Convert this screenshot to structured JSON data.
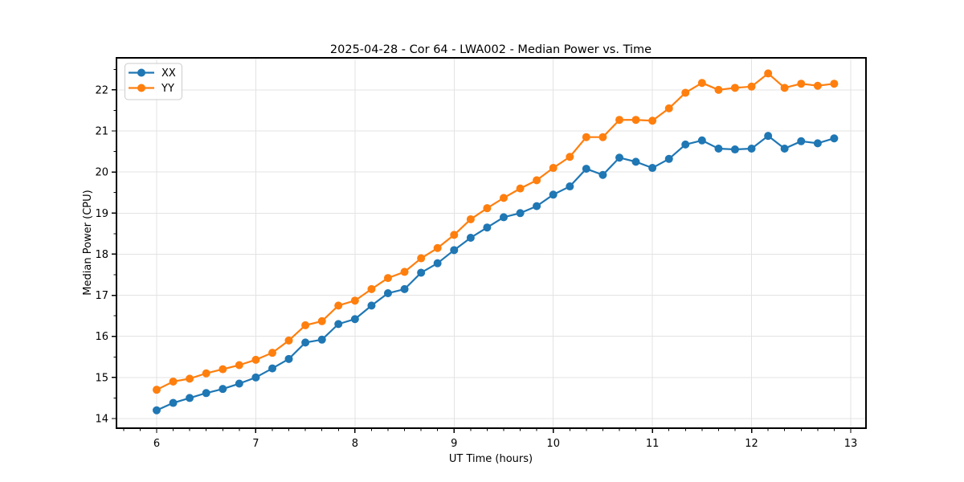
{
  "figure_title": "2025-04-28 - Cor 64 - LWA002 - Median Power vs. Time",
  "colors": {
    "series_xx": "#1f77b4",
    "series_yy": "#ff7f0e",
    "grid": "#e3e3e3",
    "spine": "#000000",
    "tick": "#000000",
    "text": "#000000",
    "legend_border": "#cccccc",
    "legend_background": "#ffffff"
  },
  "chart_data": {
    "type": "line",
    "title": "2025-04-28 - Cor 64 - LWA002 - Median Power vs. Time",
    "xlabel": "UT Time (hours)",
    "ylabel": "Median Power (CPU)",
    "xlim": [
      5.595,
      13.154
    ],
    "ylim": [
      13.765,
      22.78
    ],
    "x_major_ticks": [
      6,
      7,
      8,
      9,
      10,
      11,
      12,
      13
    ],
    "y_major_ticks": [
      14,
      15,
      16,
      17,
      18,
      19,
      20,
      21,
      22
    ],
    "x_minor_step": 0.16667,
    "y_minor_step": 0.5,
    "grid": true,
    "legend_position": "upper-left",
    "marker": "circle",
    "x": [
      6,
      6.167,
      6.333,
      6.5,
      6.667,
      6.833,
      7,
      7.167,
      7.333,
      7.5,
      7.667,
      7.833,
      8,
      8.167,
      8.333,
      8.5,
      8.667,
      8.833,
      9,
      9.167,
      9.333,
      9.5,
      9.667,
      9.833,
      10,
      10.167,
      10.333,
      10.5,
      10.667,
      10.833,
      11,
      11.167,
      11.333,
      11.5,
      11.667,
      11.833,
      12,
      12.167,
      12.333,
      12.5,
      12.667,
      12.833
    ],
    "series": [
      {
        "name": "XX",
        "color": "#1f77b4",
        "values": [
          14.2,
          14.38,
          14.5,
          14.62,
          14.72,
          14.85,
          15.0,
          15.22,
          15.45,
          15.85,
          15.92,
          16.3,
          16.42,
          16.75,
          17.05,
          17.15,
          17.55,
          17.78,
          18.1,
          18.4,
          18.65,
          18.9,
          19.0,
          19.17,
          19.45,
          19.65,
          20.08,
          19.93,
          20.35,
          20.25,
          20.1,
          20.32,
          20.67,
          20.77,
          20.57,
          20.55,
          20.57,
          20.88,
          20.57,
          20.75,
          20.7,
          20.82
        ]
      },
      {
        "name": "YY",
        "color": "#ff7f0e",
        "values": [
          14.7,
          14.9,
          14.97,
          15.1,
          15.2,
          15.3,
          15.43,
          15.6,
          15.9,
          16.27,
          16.37,
          16.75,
          16.87,
          17.15,
          17.42,
          17.57,
          17.9,
          18.15,
          18.47,
          18.85,
          19.12,
          19.37,
          19.6,
          19.8,
          20.1,
          20.37,
          20.85,
          20.85,
          21.27,
          21.27,
          21.25,
          21.55,
          21.93,
          22.17,
          22.0,
          22.05,
          22.08,
          22.4,
          22.05,
          22.15,
          22.1,
          22.15
        ]
      }
    ]
  }
}
